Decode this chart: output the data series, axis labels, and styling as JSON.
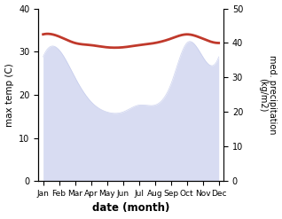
{
  "months": [
    "Jan",
    "Feb",
    "Mar",
    "Apr",
    "May",
    "Jun",
    "Jul",
    "Aug",
    "Sep",
    "Oct",
    "Nov",
    "Dec"
  ],
  "month_indices": [
    0,
    1,
    2,
    3,
    4,
    5,
    6,
    7,
    8,
    9,
    10,
    11
  ],
  "max_temp": [
    34,
    33.5,
    32,
    31.5,
    31,
    31,
    31.5,
    32,
    33,
    34,
    33,
    32
  ],
  "precipitation": [
    36,
    38,
    30,
    23,
    20,
    20,
    22,
    22,
    28,
    40,
    36,
    36
  ],
  "temp_color": "#c0392b",
  "precip_fill_color": "#b8c0e8",
  "ylim_left": [
    0,
    40
  ],
  "ylim_right": [
    0,
    50
  ],
  "ylabel_left": "max temp (C)",
  "ylabel_right": "med. precipitation\n(kg/m2)",
  "xlabel": "date (month)",
  "figsize": [
    3.18,
    2.47
  ],
  "dpi": 100
}
